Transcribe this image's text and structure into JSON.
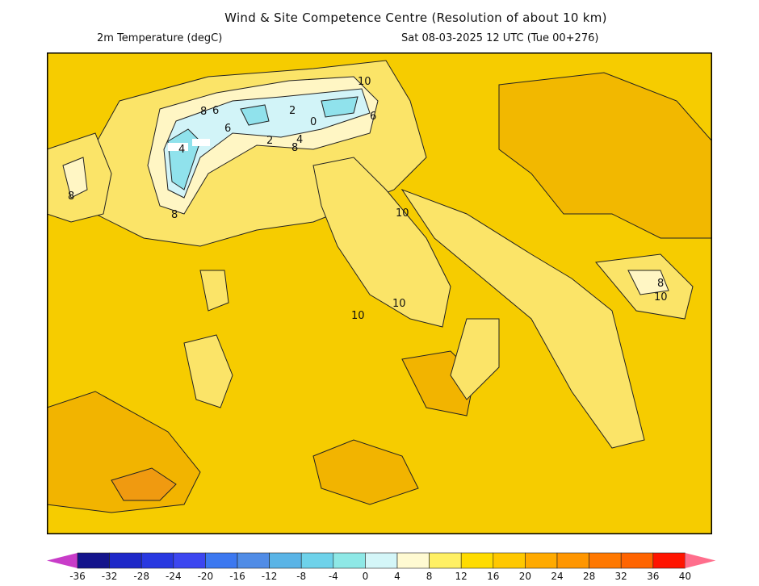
{
  "header": {
    "title": "Wind & Site Competence Centre (Resolution of about 10 km)",
    "variable": "2m Temperature (degC)",
    "valid_time": "Sat 08-03-2025 12 UTC (Tue 00+276)"
  },
  "map": {
    "contour_labels": [
      "8",
      "6",
      "6",
      "2",
      "0",
      "6",
      "2",
      "4",
      "8",
      "4",
      "8",
      "8",
      "10",
      "10",
      "10",
      "10",
      "8",
      "10"
    ]
  },
  "legend": {
    "ticks": [
      "-36",
      "-32",
      "-28",
      "-24",
      "-20",
      "-16",
      "-12",
      "-8",
      "-4",
      "0",
      "4",
      "8",
      "12",
      "16",
      "20",
      "24",
      "28",
      "32",
      "36",
      "40"
    ],
    "colors": [
      "#14148c",
      "#1e28c8",
      "#2838e0",
      "#3c46f0",
      "#3c78f0",
      "#508ce6",
      "#5ab4e6",
      "#6ed2ea",
      "#8ee8e6",
      "#d4f6f8",
      "#fffad2",
      "#fff064",
      "#ffdc00",
      "#ffc800",
      "#ffaa00",
      "#ff9600",
      "#ff7800",
      "#ff6400",
      "#ff1400"
    ],
    "under_color": "#c83cc8",
    "over_color": "#ff6e8c"
  }
}
